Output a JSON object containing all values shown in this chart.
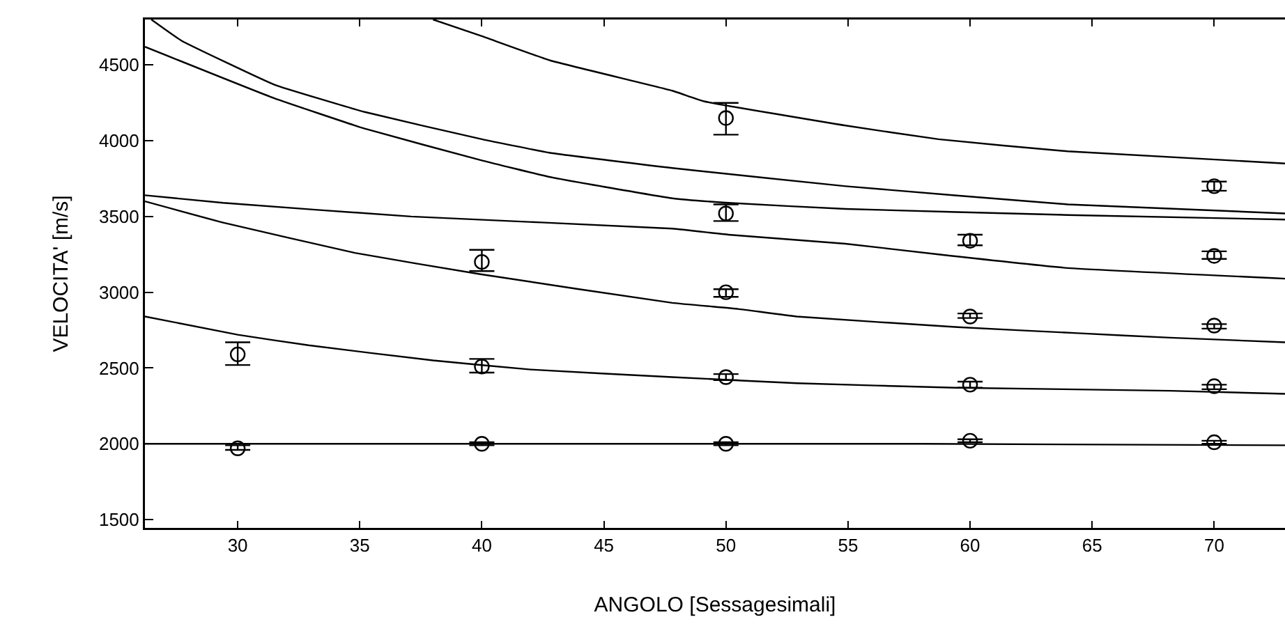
{
  "chart_data": {
    "type": "line",
    "xlabel": "ANGOLO [Sessagesimali]",
    "ylabel": "VELOCITA' [m/s]",
    "xlim": [
      26.2,
      72.9
    ],
    "ylim": [
      1445,
      4800
    ],
    "xticks": [
      30,
      35,
      40,
      45,
      50,
      55,
      60,
      65,
      70
    ],
    "yticks": [
      1500,
      2000,
      2500,
      3000,
      3500,
      4000,
      4500
    ],
    "grid": false,
    "legend": false,
    "line_style": "solid",
    "series": [
      {
        "color": "#000000",
        "marker": "none",
        "x": [
          38.0,
          40.0,
          42.8,
          47.8,
          49.1,
          54.9,
          58.7,
          64.0,
          72.9
        ],
        "values": [
          4800,
          4690,
          4530,
          4330,
          4260,
          4100,
          4010,
          3930,
          3850
        ]
      },
      {
        "color": "#000000",
        "marker": "none",
        "x": [
          26.46,
          27.7,
          31.5,
          35.2,
          40.0,
          42.8,
          47.8,
          54.9,
          64.0,
          72.9
        ],
        "values": [
          4800,
          4660,
          4370,
          4190,
          4010,
          3920,
          3820,
          3700,
          3580,
          3520
        ]
      },
      {
        "color": "#000000",
        "marker": "none",
        "x": [
          26.2,
          31.5,
          35.2,
          40.0,
          42.8,
          47.8,
          50.1,
          54.9,
          64.0,
          72.9
        ],
        "values": [
          4620,
          4280,
          4080,
          3870,
          3760,
          3620,
          3590,
          3550,
          3510,
          3480
        ]
      },
      {
        "color": "#000000",
        "marker": "none",
        "x": [
          26.2,
          29.4,
          37.1,
          47.8,
          50.1,
          54.9,
          58.7,
          64.0,
          72.9
        ],
        "values": [
          3640,
          3590,
          3500,
          3420,
          3380,
          3320,
          3250,
          3160,
          3090
        ]
      },
      {
        "color": "#000000",
        "marker": "none",
        "x": [
          26.2,
          29.4,
          34.8,
          39.9,
          47.8,
          50.5,
          52.9,
          59.5,
          64.4,
          68.2,
          72.9
        ],
        "values": [
          3600,
          3460,
          3260,
          3120,
          2930,
          2890,
          2840,
          2770,
          2730,
          2700,
          2670
        ]
      },
      {
        "color": "#000000",
        "marker": "none",
        "x": [
          26.2,
          30.0,
          32.9,
          38.0,
          42.0,
          47.8,
          52.9,
          59.4,
          68.2,
          72.9
        ],
        "values": [
          2840,
          2720,
          2650,
          2550,
          2490,
          2440,
          2400,
          2370,
          2350,
          2330
        ]
      },
      {
        "color": "#000000",
        "marker": "none",
        "x": [
          26.2,
          58.0,
          72.9
        ],
        "values": [
          2000,
          2000,
          1990
        ]
      },
      {
        "type": "scatter",
        "color": "#000000",
        "marker": "circle",
        "x": [
          30,
          30,
          40,
          40,
          40,
          50,
          50,
          50,
          50,
          50,
          60,
          60,
          60,
          60,
          70,
          70,
          70,
          70,
          70
        ],
        "values": [
          2590,
          1970,
          3200,
          2510,
          2000,
          4150,
          3520,
          3000,
          2440,
          2000,
          3340,
          2840,
          2390,
          2020,
          3700,
          3240,
          2780,
          2380,
          2010
        ],
        "errors": [
          [
            2520,
            2670
          ],
          [
            1960,
            1990
          ],
          [
            3140,
            3280
          ],
          [
            2470,
            2560
          ],
          [
            1990,
            2010
          ],
          [
            4040,
            4250
          ],
          [
            3470,
            3580
          ],
          [
            2970,
            3020
          ],
          [
            2420,
            2460
          ],
          [
            1990,
            2010
          ],
          [
            3310,
            3380
          ],
          [
            2830,
            2860
          ],
          [
            2370,
            2410
          ],
          [
            2010,
            2030
          ],
          [
            3670,
            3730
          ],
          [
            3220,
            3270
          ],
          [
            2760,
            2790
          ],
          [
            2360,
            2390
          ],
          [
            2000,
            2020
          ]
        ]
      }
    ]
  }
}
